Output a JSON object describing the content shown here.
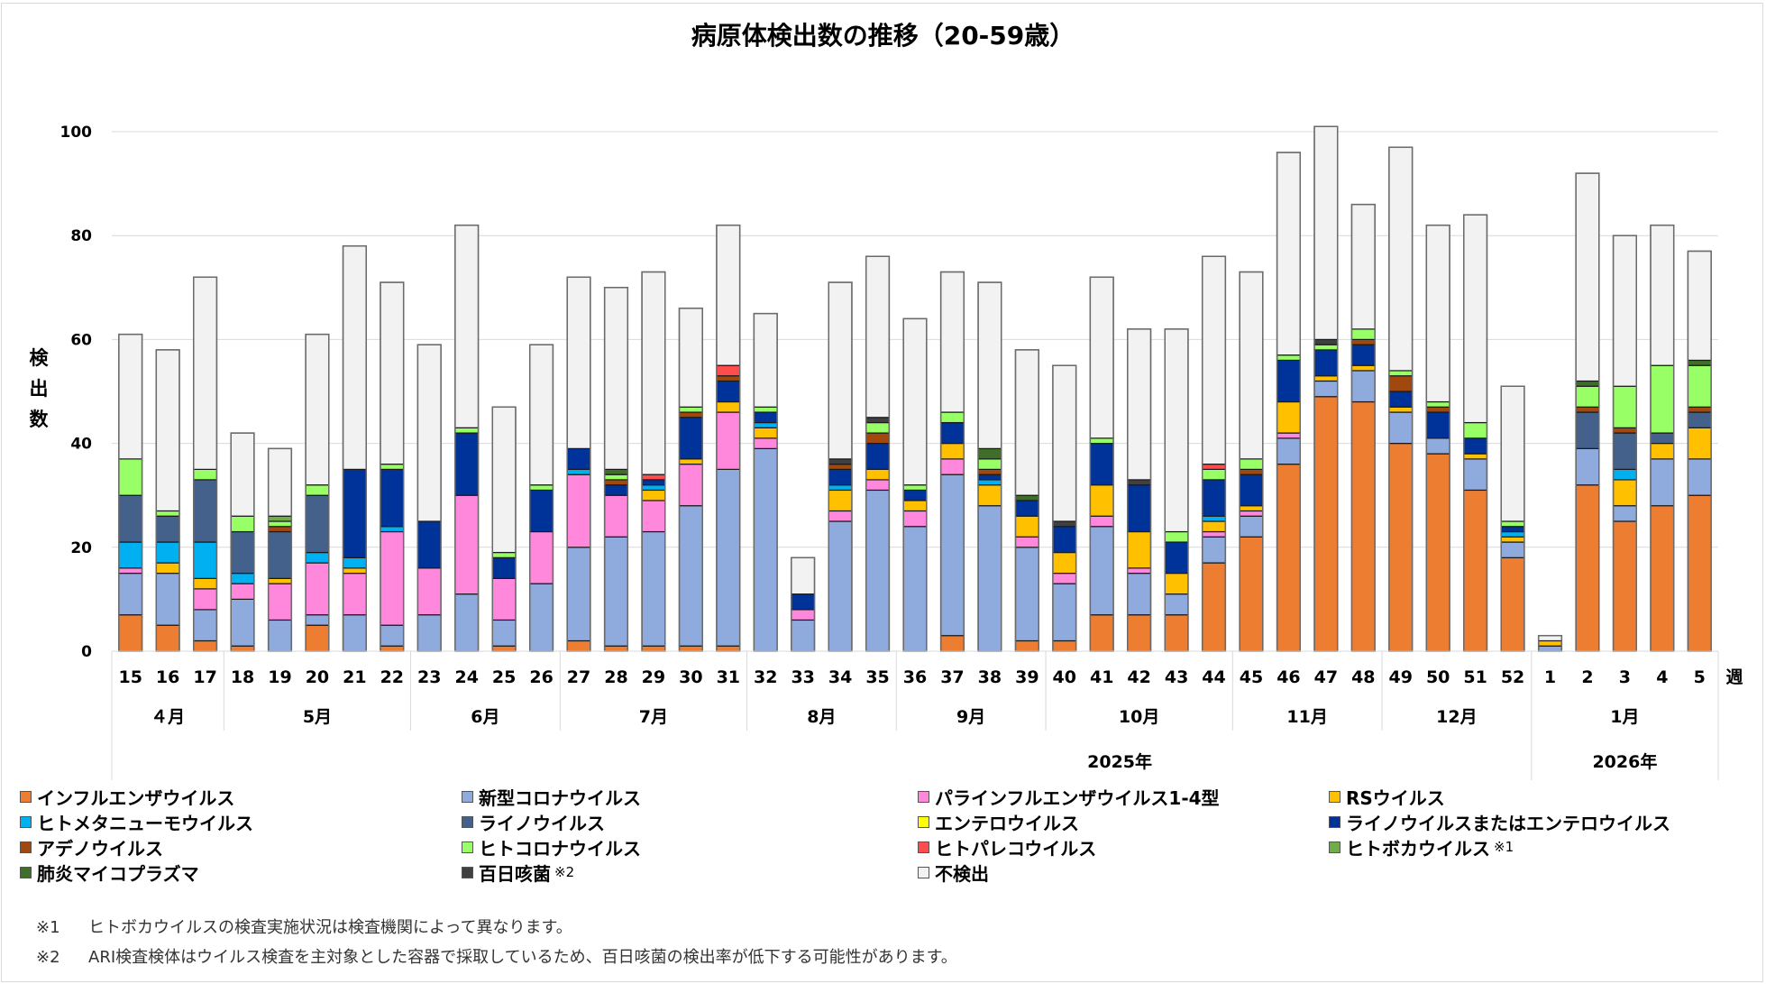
{
  "chart_data": {
    "type": "bar",
    "stacked": true,
    "title": "病原体検出数の推移（20-59歳）",
    "ylabel": "検出数",
    "xlabel": "週",
    "ylim": [
      0,
      100
    ],
    "yticks": [
      0,
      20,
      40,
      60,
      80,
      100
    ],
    "grid": true,
    "legend_position": "bottom",
    "categories": [
      "15",
      "16",
      "17",
      "18",
      "19",
      "20",
      "21",
      "22",
      "23",
      "24",
      "25",
      "26",
      "27",
      "28",
      "29",
      "30",
      "31",
      "32",
      "33",
      "34",
      "35",
      "36",
      "37",
      "38",
      "39",
      "40",
      "41",
      "42",
      "43",
      "44",
      "45",
      "46",
      "47",
      "48",
      "49",
      "50",
      "51",
      "52",
      "1",
      "2",
      "3",
      "4",
      "5"
    ],
    "month_groups": [
      {
        "label": "４月",
        "count": 3
      },
      {
        "label": "5月",
        "count": 5
      },
      {
        "label": "6月",
        "count": 4
      },
      {
        "label": "7月",
        "count": 5
      },
      {
        "label": "8月",
        "count": 4
      },
      {
        "label": "9月",
        "count": 4
      },
      {
        "label": "10月",
        "count": 5
      },
      {
        "label": "11月",
        "count": 4
      },
      {
        "label": "12月",
        "count": 4
      },
      {
        "label": "1月",
        "count": 5
      }
    ],
    "year_groups": [
      {
        "label": "2025年",
        "count": 38
      },
      {
        "label": "2026年",
        "count": 5
      }
    ],
    "series": [
      {
        "name": "インフルエンザウイルス",
        "color": "#ED7D31",
        "values": [
          7,
          5,
          2,
          1,
          0,
          5,
          0,
          1,
          0,
          0,
          1,
          0,
          2,
          1,
          1,
          1,
          1,
          0,
          0,
          0,
          0,
          0,
          3,
          0,
          2,
          2,
          7,
          7,
          7,
          17,
          22,
          36,
          49,
          48,
          40,
          38,
          31,
          18,
          0,
          32,
          25,
          28,
          30
        ]
      },
      {
        "name": "新型コロナウイルス",
        "color": "#8FAADC",
        "values": [
          8,
          10,
          6,
          9,
          6,
          2,
          7,
          4,
          7,
          11,
          5,
          13,
          18,
          21,
          22,
          27,
          34,
          39,
          6,
          25,
          31,
          24,
          31,
          28,
          18,
          11,
          17,
          8,
          4,
          5,
          4,
          5,
          3,
          6,
          6,
          3,
          6,
          3,
          1,
          7,
          3,
          9,
          7
        ]
      },
      {
        "name": "パラインフルエンザウイルス1-4型",
        "color": "#FF88DD",
        "values": [
          1,
          0,
          4,
          3,
          7,
          10,
          8,
          18,
          9,
          19,
          8,
          10,
          14,
          8,
          6,
          8,
          11,
          2,
          2,
          2,
          2,
          3,
          3,
          0,
          2,
          2,
          2,
          1,
          0,
          1,
          1,
          1,
          0,
          0,
          0,
          0,
          0,
          0,
          0,
          0,
          0,
          0,
          0
        ]
      },
      {
        "name": "RSウイルス",
        "color": "#FFC000",
        "values": [
          0,
          2,
          2,
          0,
          1,
          0,
          1,
          0,
          0,
          0,
          0,
          0,
          0,
          0,
          2,
          1,
          2,
          2,
          0,
          4,
          2,
          2,
          3,
          4,
          4,
          4,
          6,
          7,
          4,
          2,
          1,
          6,
          1,
          1,
          1,
          0,
          1,
          1,
          1,
          0,
          5,
          3,
          6
        ]
      },
      {
        "name": "ヒトメタニューモウイルス",
        "color": "#00B0F0",
        "values": [
          5,
          4,
          7,
          2,
          0,
          2,
          2,
          1,
          0,
          0,
          0,
          0,
          1,
          0,
          1,
          0,
          0,
          1,
          0,
          1,
          0,
          0,
          0,
          1,
          0,
          0,
          0,
          0,
          0,
          1,
          0,
          0,
          0,
          0,
          0,
          0,
          0,
          1,
          0,
          0,
          2,
          0,
          0
        ]
      },
      {
        "name": "ライノウイルス",
        "color": "#44618C",
        "values": [
          9,
          5,
          12,
          8,
          9,
          11,
          0,
          0,
          0,
          0,
          0,
          0,
          0,
          0,
          0,
          0,
          0,
          0,
          0,
          0,
          0,
          0,
          0,
          0,
          0,
          0,
          0,
          0,
          0,
          0,
          0,
          0,
          0,
          0,
          0,
          0,
          0,
          0,
          0,
          7,
          7,
          2,
          3
        ]
      },
      {
        "name": "エンテロウイルス",
        "color": "#FFFF00",
        "values": [
          0,
          0,
          0,
          0,
          0,
          0,
          0,
          0,
          0,
          0,
          0,
          0,
          0,
          0,
          0,
          0,
          0,
          0,
          0,
          0,
          0,
          0,
          0,
          0,
          0,
          0,
          0,
          0,
          0,
          0,
          0,
          0,
          0,
          0,
          0,
          0,
          0,
          0,
          0,
          0,
          0,
          0,
          0
        ]
      },
      {
        "name": "ライノウイルスまたはエンテロウイルス",
        "color": "#003399",
        "values": [
          0,
          0,
          0,
          0,
          0,
          0,
          17,
          11,
          9,
          12,
          4,
          8,
          4,
          2,
          1,
          8,
          4,
          2,
          3,
          3,
          5,
          2,
          4,
          1,
          3,
          5,
          8,
          9,
          6,
          7,
          6,
          8,
          5,
          4,
          3,
          5,
          3,
          1,
          0,
          0,
          0,
          0,
          0
        ]
      },
      {
        "name": "アデノウイルス",
        "color": "#A0480E",
        "values": [
          0,
          0,
          0,
          0,
          1,
          0,
          0,
          0,
          0,
          0,
          0,
          0,
          0,
          1,
          0,
          1,
          1,
          0,
          0,
          1,
          2,
          0,
          0,
          1,
          0,
          0,
          0,
          0,
          0,
          0,
          1,
          0,
          0,
          1,
          3,
          1,
          0,
          0,
          0,
          1,
          1,
          0,
          1
        ]
      },
      {
        "name": "ヒトコロナウイルス",
        "color": "#99FF66",
        "values": [
          7,
          1,
          2,
          3,
          1,
          2,
          0,
          1,
          0,
          1,
          1,
          1,
          0,
          1,
          0,
          1,
          0,
          1,
          0,
          0,
          2,
          1,
          2,
          2,
          0,
          0,
          1,
          0,
          2,
          2,
          2,
          1,
          1,
          2,
          1,
          1,
          3,
          1,
          0,
          4,
          8,
          13,
          8
        ]
      },
      {
        "name": "ヒトパレコウイルス",
        "color": "#FF4D4D",
        "values": [
          0,
          0,
          0,
          0,
          0,
          0,
          0,
          0,
          0,
          0,
          0,
          0,
          0,
          0,
          1,
          0,
          2,
          0,
          0,
          0,
          0,
          0,
          0,
          0,
          0,
          0,
          0,
          0,
          0,
          1,
          0,
          0,
          0,
          0,
          0,
          0,
          0,
          0,
          0,
          0,
          0,
          0,
          0
        ]
      },
      {
        "name": "ヒトボカウイルス",
        "color": "#70AD47",
        "values": [
          0,
          0,
          0,
          0,
          1,
          0,
          0,
          0,
          0,
          0,
          0,
          0,
          0,
          0,
          0,
          0,
          0,
          0,
          0,
          0,
          0,
          0,
          0,
          0,
          0,
          0,
          0,
          0,
          0,
          0,
          0,
          0,
          0,
          0,
          0,
          0,
          0,
          0,
          0,
          0,
          0,
          0,
          0
        ]
      },
      {
        "name": "肺炎マイコプラズマ",
        "color": "#3F6E2A",
        "values": [
          0,
          0,
          0,
          0,
          0,
          0,
          0,
          0,
          0,
          0,
          0,
          0,
          0,
          1,
          0,
          0,
          0,
          0,
          0,
          0,
          0,
          0,
          0,
          2,
          1,
          0,
          0,
          0,
          0,
          0,
          0,
          0,
          0,
          0,
          0,
          0,
          0,
          0,
          0,
          1,
          0,
          0,
          1
        ]
      },
      {
        "name": "百日咳菌",
        "color": "#404040",
        "values": [
          0,
          0,
          0,
          0,
          0,
          0,
          0,
          0,
          0,
          0,
          0,
          0,
          0,
          0,
          0,
          0,
          0,
          0,
          0,
          1,
          1,
          0,
          0,
          0,
          0,
          1,
          0,
          1,
          0,
          0,
          0,
          0,
          1,
          0,
          0,
          0,
          0,
          0,
          0,
          0,
          0,
          0,
          0
        ]
      },
      {
        "name": "不検出",
        "color": "#F2F2F2",
        "values": [
          24,
          31,
          37,
          16,
          13,
          29,
          43,
          35,
          34,
          39,
          28,
          27,
          33,
          35,
          39,
          19,
          27,
          18,
          7,
          34,
          31,
          32,
          27,
          32,
          28,
          30,
          31,
          29,
          39,
          40,
          36,
          39,
          41,
          24,
          43,
          34,
          40,
          26,
          1,
          40,
          29,
          27,
          21
        ]
      }
    ]
  },
  "legend": [
    {
      "label": "インフルエンザウイルス",
      "color": "#ED7D31",
      "note": ""
    },
    {
      "label": "新型コロナウイルス",
      "color": "#8FAADC",
      "note": ""
    },
    {
      "label": "パラインフルエンザウイルス1-4型",
      "color": "#FF88DD",
      "note": ""
    },
    {
      "label": "RSウイルス",
      "color": "#FFC000",
      "note": ""
    },
    {
      "label": "ヒトメタニューモウイルス",
      "color": "#00B0F0",
      "note": ""
    },
    {
      "label": "ライノウイルス",
      "color": "#44618C",
      "note": ""
    },
    {
      "label": "エンテロウイルス",
      "color": "#FFFF00",
      "note": ""
    },
    {
      "label": "ライノウイルスまたはエンテロウイルス",
      "color": "#003399",
      "note": ""
    },
    {
      "label": "アデノウイルス",
      "color": "#A0480E",
      "note": ""
    },
    {
      "label": "ヒトコロナウイルス",
      "color": "#99FF66",
      "note": ""
    },
    {
      "label": "ヒトパレコウイルス",
      "color": "#FF4D4D",
      "note": ""
    },
    {
      "label": "ヒトボカウイルス",
      "color": "#70AD47",
      "note": "※1"
    },
    {
      "label": "肺炎マイコプラズマ",
      "color": "#3F6E2A",
      "note": ""
    },
    {
      "label": "百日咳菌",
      "color": "#404040",
      "note": "※2"
    },
    {
      "label": "不検出",
      "color": "#F2F2F2",
      "note": ""
    }
  ],
  "notes": [
    {
      "mark": "※1",
      "text": "ヒトボカウイルスの検査実施状況は検査機関によって異なります。"
    },
    {
      "mark": "※2",
      "text": "ARI検査検体はウイルス検査を主対象とした容器で採取しているため、百日咳菌の検出率が低下する可能性があります。"
    }
  ]
}
